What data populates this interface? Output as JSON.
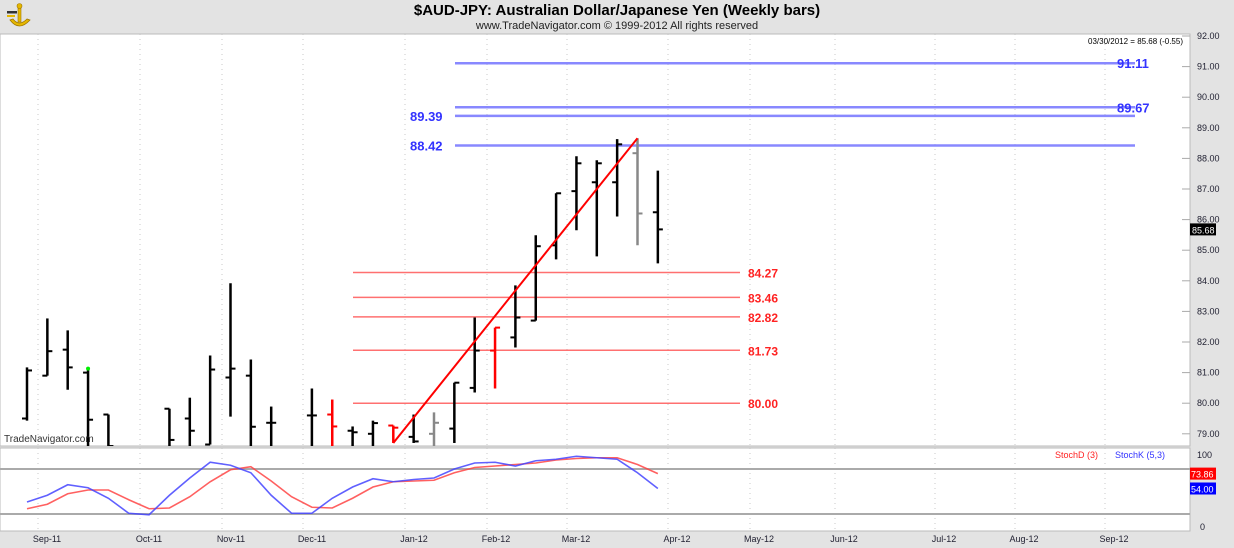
{
  "header": {
    "title": "$AUD-JPY:  Australian Dollar/Japanese Yen  (Weekly bars)",
    "subtitle": "www.TradeNavigator.com © 1999-2012 All rights reserved",
    "logo": "TradeNavigator sextant logo"
  },
  "watermark": "TradeNavigator.com",
  "colors": {
    "up_bar": "#000000",
    "down_bar_red": "#ff0000",
    "neutral_bar": "#808080",
    "fib_blue": "#4444ff",
    "fib_red": "#ff3333",
    "stoch_d": "#ff4444",
    "stoch_k": "#4444ff"
  },
  "chart_data": [
    {
      "type": "ohlc",
      "title": "$AUD-JPY:  Australian Dollar/Japanese Yen  (Weekly bars)",
      "last_readout": "03/30/2012 = 85.68 (-0.55)",
      "last_price_label": "85.68",
      "ylim": [
        79,
        92
      ],
      "y_ticks": [
        "92.00",
        "91.00",
        "90.00",
        "89.00",
        "88.00",
        "87.00",
        "86.00",
        "85.00",
        "84.00",
        "83.00",
        "82.00",
        "81.00",
        "80.00",
        "79.00"
      ],
      "x_ticks": [
        "Sep-11",
        "Oct-11",
        "Nov-11",
        "Dec-11",
        "Jan-12",
        "Feb-12",
        "Mar-12",
        "Apr-12",
        "May-12",
        "Jun-12",
        "Jul-12",
        "Aug-12",
        "Sep-12"
      ],
      "grid": true,
      "bars": [
        {
          "i": 0,
          "open": 79.5,
          "high": 81.17,
          "low": 79.43,
          "close": 81.07,
          "color": "black"
        },
        {
          "i": 1,
          "open": 80.9,
          "high": 82.77,
          "low": 80.9,
          "close": 81.7,
          "color": "black"
        },
        {
          "i": 2,
          "open": 81.75,
          "high": 82.38,
          "low": 80.44,
          "close": 81.17,
          "color": "black"
        },
        {
          "i": 3,
          "open": 81.0,
          "high": 81.13,
          "low": 78.5,
          "close": 79.46,
          "color": "black"
        },
        {
          "i": 4,
          "open": 79.63,
          "high": 79.63,
          "low": 78.5,
          "close": 78.6,
          "color": "black"
        },
        {
          "i": 7,
          "open": 79.82,
          "high": 79.82,
          "low": 78.5,
          "close": 78.8,
          "color": "black"
        },
        {
          "i": 8,
          "open": 79.5,
          "high": 80.18,
          "low": 78.5,
          "close": 79.1,
          "color": "black"
        },
        {
          "i": 9,
          "open": 78.65,
          "high": 81.56,
          "low": 78.65,
          "close": 81.1,
          "color": "black"
        },
        {
          "i": 10,
          "open": 80.84,
          "high": 83.92,
          "low": 79.56,
          "close": 81.13,
          "color": "black"
        },
        {
          "i": 11,
          "open": 80.9,
          "high": 81.43,
          "low": 78.5,
          "close": 79.23,
          "color": "black"
        },
        {
          "i": 12,
          "open": 79.36,
          "high": 79.89,
          "low": 78.5,
          "close": 79.36,
          "color": "black"
        },
        {
          "i": 14,
          "open": 79.6,
          "high": 80.48,
          "low": 78.5,
          "close": 79.6,
          "color": "black"
        },
        {
          "i": 15,
          "open": 79.63,
          "high": 80.12,
          "low": 78.5,
          "close": 79.24,
          "color": "red"
        },
        {
          "i": 16,
          "open": 79.1,
          "high": 79.24,
          "low": 78.5,
          "close": 79.05,
          "color": "black"
        },
        {
          "i": 17,
          "open": 79.0,
          "high": 79.43,
          "low": 78.5,
          "close": 79.35,
          "color": "black"
        },
        {
          "i": 18,
          "open": 79.27,
          "high": 79.27,
          "low": 78.7,
          "close": 79.2,
          "color": "red"
        },
        {
          "i": 19,
          "open": 78.9,
          "high": 79.63,
          "low": 78.7,
          "close": 78.75,
          "color": "black"
        },
        {
          "i": 20,
          "open": 79.0,
          "high": 79.7,
          "low": 78.5,
          "close": 79.36,
          "color": "gray"
        },
        {
          "i": 21,
          "open": 79.17,
          "high": 80.67,
          "low": 78.7,
          "close": 80.67,
          "color": "black"
        },
        {
          "i": 22,
          "open": 80.5,
          "high": 82.8,
          "low": 80.35,
          "close": 81.72,
          "color": "black"
        },
        {
          "i": 23,
          "open": 81.72,
          "high": 82.47,
          "low": 80.48,
          "close": 82.47,
          "color": "red"
        },
        {
          "i": 24,
          "open": 82.15,
          "high": 83.85,
          "low": 81.82,
          "close": 82.8,
          "color": "black"
        },
        {
          "i": 25,
          "open": 82.7,
          "high": 85.49,
          "low": 82.7,
          "close": 85.13,
          "color": "black"
        },
        {
          "i": 26,
          "open": 85.16,
          "high": 86.86,
          "low": 84.7,
          "close": 86.86,
          "color": "black"
        },
        {
          "i": 27,
          "open": 86.93,
          "high": 88.07,
          "low": 85.65,
          "close": 87.84,
          "color": "black"
        },
        {
          "i": 28,
          "open": 87.22,
          "high": 87.94,
          "low": 84.8,
          "close": 87.84,
          "color": "black"
        },
        {
          "i": 29,
          "open": 87.22,
          "high": 88.63,
          "low": 86.1,
          "close": 88.46,
          "color": "black"
        },
        {
          "i": 30,
          "open": 88.17,
          "high": 88.66,
          "low": 85.16,
          "close": 86.2,
          "color": "gray"
        },
        {
          "i": 31,
          "open": 86.24,
          "high": 87.6,
          "low": 84.57,
          "close": 85.68,
          "color": "black"
        }
      ],
      "trendline": {
        "from": {
          "i": 18,
          "price": 78.7
        },
        "to": {
          "i": 30,
          "price": 88.66
        },
        "color": "#ff0000"
      },
      "levels_blue": [
        {
          "value": 91.11,
          "label": "91.11",
          "label_side": "right"
        },
        {
          "value": 89.67,
          "label": "89.67",
          "label_side": "right"
        },
        {
          "value": 89.39,
          "label": "89.39",
          "label_side": "left"
        },
        {
          "value": 88.42,
          "label": "88.42",
          "label_side": "left"
        }
      ],
      "levels_red": [
        {
          "value": 84.27,
          "label": "84.27"
        },
        {
          "value": 83.46,
          "label": "83.46"
        },
        {
          "value": 82.82,
          "label": "82.82"
        },
        {
          "value": 81.73,
          "label": "81.73"
        },
        {
          "value": 80.0,
          "label": "80.00"
        }
      ]
    },
    {
      "type": "line",
      "ylim": [
        0,
        100
      ],
      "y_ticks": [
        "100",
        "0"
      ],
      "reference_lines": [
        20,
        80
      ],
      "series": [
        {
          "name": "StochD (3)",
          "color": "#ff4444",
          "last_label": "73.86",
          "values": [
            27,
            33,
            47,
            52,
            52,
            39,
            27,
            28,
            43,
            63,
            79,
            83,
            64,
            43,
            29,
            28,
            41,
            56,
            63,
            64,
            65,
            75,
            82,
            84,
            86,
            88,
            92,
            94,
            95,
            95,
            86,
            73.86
          ]
        },
        {
          "name": "StochK (5,3)",
          "color": "#4444ff",
          "last_label": "54.00",
          "values": [
            36,
            45,
            59,
            55,
            41,
            21,
            19,
            45,
            68,
            89,
            85,
            75,
            45,
            21,
            21,
            41,
            56,
            67,
            63,
            66,
            68,
            80,
            88,
            89,
            84,
            91,
            93,
            97,
            95,
            93,
            75,
            54
          ]
        }
      ]
    }
  ]
}
